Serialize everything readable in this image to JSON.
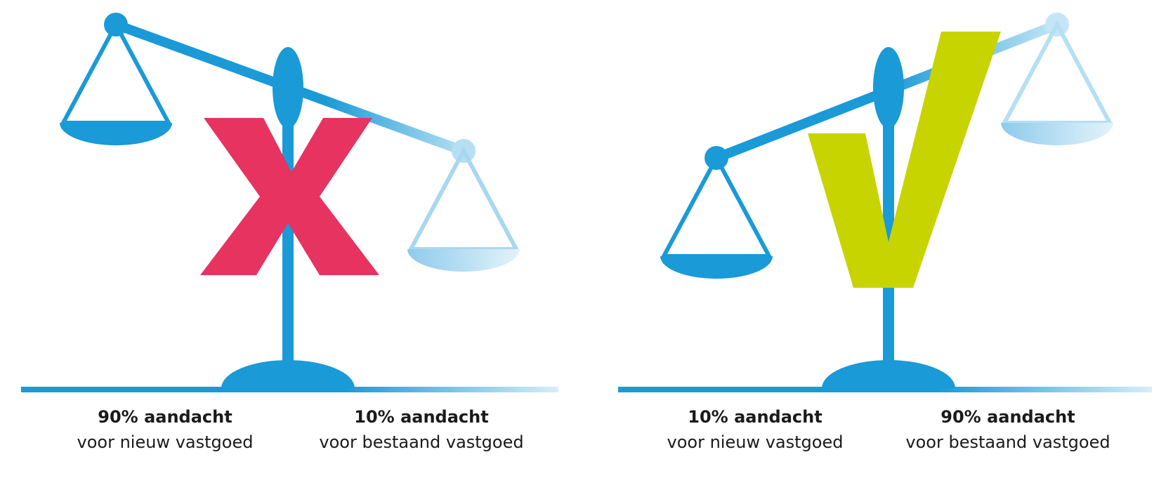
{
  "panels": [
    {
      "items": [
        {
          "title": "90% aandacht",
          "subtitle": "voor nieuw vastgoed"
        },
        {
          "title": "10% aandacht",
          "subtitle": "voor bestaand vastgoed"
        }
      ]
    },
    {
      "items": [
        {
          "title": "10% aandacht",
          "subtitle": "voor nieuw vastgoed"
        },
        {
          "title": "90% aandacht",
          "subtitle": "voor bestaand vastgoed"
        }
      ]
    }
  ]
}
